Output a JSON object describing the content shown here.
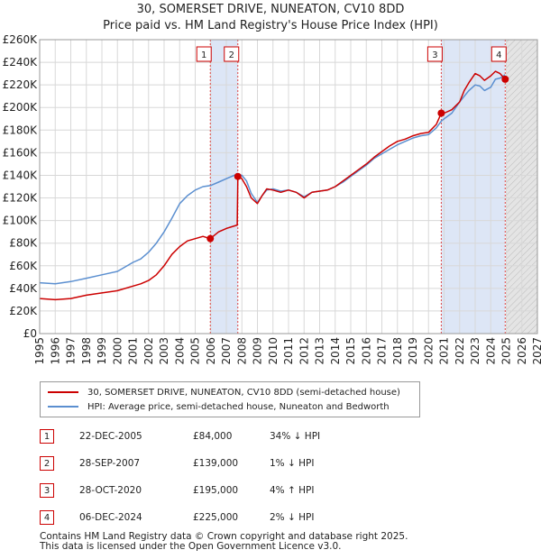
{
  "title": {
    "line1": "30, SOMERSET DRIVE, NUNEATON, CV10 8DD",
    "line2": "Price paid vs. HM Land Registry's House Price Index (HPI)"
  },
  "colors": {
    "property": "#cc0000",
    "hpi": "#5b8fd0",
    "future_shade": "#e4e4e4",
    "sale_shade": "#dde6f6"
  },
  "legend": {
    "property_label": "30, SOMERSET DRIVE, NUNEATON, CV10 8DD (semi-detached house)",
    "hpi_label": "HPI: Average price, semi-detached house, Nuneaton and Bedworth"
  },
  "transactions": [
    {
      "num": "1",
      "date": "22-DEC-2005",
      "price": "£84,000",
      "pct": "34% ↓ HPI"
    },
    {
      "num": "2",
      "date": "28-SEP-2007",
      "price": "£139,000",
      "pct": "1% ↓ HPI"
    },
    {
      "num": "3",
      "date": "28-OCT-2020",
      "price": "£195,000",
      "pct": "4% ↑ HPI"
    },
    {
      "num": "4",
      "date": "06-DEC-2024",
      "price": "£225,000",
      "pct": "2% ↓ HPI"
    }
  ],
  "footer": {
    "line1": "Contains HM Land Registry data © Crown copyright and database right 2025.",
    "line2": "This data is licensed under the Open Government Licence v3.0."
  },
  "chart_data": {
    "type": "line",
    "xlim": [
      1995,
      2027
    ],
    "ylim": [
      0,
      260000
    ],
    "x_ticks": [
      1995,
      1996,
      1997,
      1998,
      1999,
      2000,
      2001,
      2002,
      2003,
      2004,
      2005,
      2006,
      2007,
      2008,
      2009,
      2010,
      2011,
      2012,
      2013,
      2014,
      2015,
      2016,
      2017,
      2018,
      2019,
      2020,
      2021,
      2022,
      2023,
      2024,
      2025,
      2026,
      2027
    ],
    "y_ticks": [
      {
        "value": 0,
        "label": "£0"
      },
      {
        "value": 20000,
        "label": "£20K"
      },
      {
        "value": 40000,
        "label": "£40K"
      },
      {
        "value": 60000,
        "label": "£60K"
      },
      {
        "value": 80000,
        "label": "£80K"
      },
      {
        "value": 100000,
        "label": "£100K"
      },
      {
        "value": 120000,
        "label": "£120K"
      },
      {
        "value": 140000,
        "label": "£140K"
      },
      {
        "value": 160000,
        "label": "£160K"
      },
      {
        "value": 180000,
        "label": "£180K"
      },
      {
        "value": 200000,
        "label": "£200K"
      },
      {
        "value": 220000,
        "label": "£220K"
      },
      {
        "value": 240000,
        "label": "£240K"
      },
      {
        "value": 260000,
        "label": "£260K"
      }
    ],
    "grid": true,
    "future_shade_from": 2025.0,
    "sale_shades": [
      {
        "from": 2005.97,
        "to": 2007.74
      },
      {
        "from": 2020.82,
        "to": 2024.93
      }
    ],
    "markers": [
      {
        "label": "1",
        "x": 2005.97,
        "y": 84000
      },
      {
        "label": "2",
        "x": 2007.74,
        "y": 139000
      },
      {
        "label": "3",
        "x": 2020.82,
        "y": 195000
      },
      {
        "label": "4",
        "x": 2024.93,
        "y": 225000
      }
    ],
    "series": [
      {
        "name": "30, SOMERSET DRIVE, NUNEATON, CV10 8DD (semi-detached house)",
        "color": "#cc0000",
        "x": [
          1995.0,
          1996.0,
          1997.0,
          1998.0,
          1999.0,
          2000.0,
          2001.0,
          2001.5,
          2002.0,
          2002.5,
          2003.0,
          2003.5,
          2004.0,
          2004.5,
          2005.0,
          2005.5,
          2005.97,
          2006.5,
          2007.0,
          2007.7,
          2007.74,
          2008.0,
          2008.3,
          2008.6,
          2009.0,
          2009.3,
          2009.6,
          2010.0,
          2010.5,
          2011.0,
          2011.5,
          2012.0,
          2012.5,
          2013.0,
          2013.5,
          2014.0,
          2014.5,
          2015.0,
          2015.5,
          2016.0,
          2016.5,
          2017.0,
          2017.5,
          2018.0,
          2018.5,
          2019.0,
          2019.5,
          2020.0,
          2020.5,
          2020.82,
          2021.0,
          2021.5,
          2022.0,
          2022.3,
          2022.6,
          2023.0,
          2023.3,
          2023.6,
          2024.0,
          2024.3,
          2024.6,
          2024.93
        ],
        "y": [
          31000,
          30000,
          31000,
          34000,
          36000,
          38000,
          42000,
          44000,
          47000,
          52000,
          60000,
          70000,
          77000,
          82000,
          84000,
          86000,
          84000,
          90000,
          93000,
          96000,
          139000,
          137000,
          130000,
          120000,
          115000,
          122000,
          128000,
          127000,
          125000,
          127000,
          125000,
          120000,
          125000,
          126000,
          127000,
          130000,
          135000,
          140000,
          145000,
          150000,
          156000,
          161000,
          166000,
          170000,
          172000,
          175000,
          177000,
          178000,
          185000,
          195000,
          195000,
          198000,
          205000,
          215000,
          222000,
          230000,
          228000,
          224000,
          228000,
          232000,
          230000,
          225000
        ]
      },
      {
        "name": "HPI: Average price, semi-detached house, Nuneaton and Bedworth",
        "color": "#5b8fd0",
        "x": [
          1995.0,
          1996.0,
          1997.0,
          1998.0,
          1999.0,
          2000.0,
          2001.0,
          2001.5,
          2002.0,
          2002.5,
          2003.0,
          2003.5,
          2004.0,
          2004.5,
          2005.0,
          2005.5,
          2006.0,
          2006.5,
          2007.0,
          2007.5,
          2007.74,
          2008.0,
          2008.3,
          2008.6,
          2009.0,
          2009.3,
          2009.6,
          2010.0,
          2010.5,
          2011.0,
          2011.5,
          2012.0,
          2012.5,
          2013.0,
          2013.5,
          2014.0,
          2014.5,
          2015.0,
          2015.5,
          2016.0,
          2016.5,
          2017.0,
          2017.5,
          2018.0,
          2018.5,
          2019.0,
          2019.5,
          2020.0,
          2020.5,
          2020.82,
          2021.0,
          2021.5,
          2022.0,
          2022.3,
          2022.6,
          2023.0,
          2023.3,
          2023.6,
          2024.0,
          2024.3,
          2024.6,
          2024.93
        ],
        "y": [
          45000,
          44000,
          46000,
          49000,
          52000,
          55000,
          63000,
          66000,
          72000,
          80000,
          90000,
          102000,
          115000,
          122000,
          127000,
          130000,
          131000,
          134000,
          137000,
          140000,
          141000,
          140000,
          135000,
          124000,
          116000,
          122000,
          127000,
          128000,
          126000,
          127000,
          125000,
          121000,
          125000,
          126000,
          127000,
          130000,
          134000,
          139000,
          144000,
          149000,
          155000,
          159000,
          163000,
          167000,
          170000,
          173000,
          175000,
          176000,
          182000,
          188000,
          190000,
          195000,
          205000,
          210000,
          215000,
          220000,
          219000,
          215000,
          218000,
          225000,
          226000,
          229000
        ]
      }
    ]
  }
}
